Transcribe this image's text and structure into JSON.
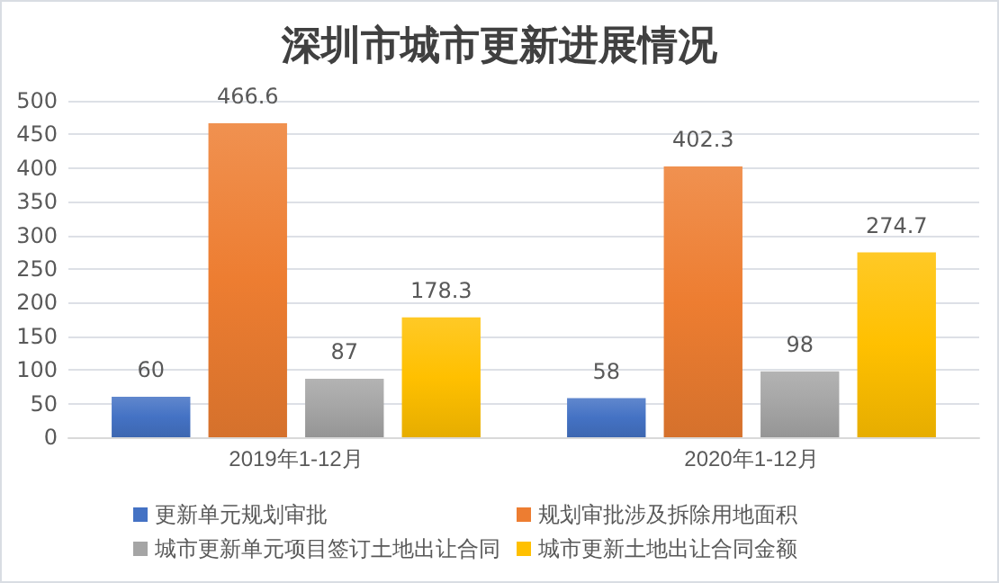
{
  "chart_data": {
    "type": "bar",
    "title": "深圳市城市更新进展情况",
    "categories": [
      "2019年1-12月",
      "2020年1-12月"
    ],
    "series": [
      {
        "name": "更新单元规划审批",
        "color": "#4472c4",
        "values": [
          60,
          58
        ]
      },
      {
        "name": "规划审批涉及拆除用地面积",
        "color": "#ed7d31",
        "values": [
          466.6,
          402.3
        ]
      },
      {
        "name": "城市更新单元项目签订土地出让合同",
        "color": "#a5a5a5",
        "values": [
          87,
          98
        ]
      },
      {
        "name": "城市更新土地出让合同金额",
        "color": "#ffc000",
        "values": [
          178.3,
          274.7
        ]
      }
    ],
    "ylim": [
      0,
      500
    ],
    "yticks": [
      0,
      50,
      100,
      150,
      200,
      250,
      300,
      350,
      400,
      450,
      500
    ],
    "grid": "y",
    "legend": "bottom",
    "data_labels": true
  }
}
